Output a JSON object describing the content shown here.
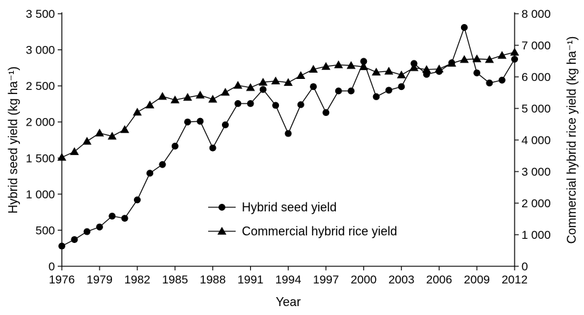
{
  "chart_data": {
    "type": "line",
    "title": "",
    "xlabel": "Year",
    "ylabel_left": "Hybrid seed yield (kg ha⁻¹)",
    "ylabel_right": "Commercial hybrid rice yield (kg ha⁻¹)",
    "xlim": [
      1976,
      2012
    ],
    "x_ticks": [
      1976,
      1979,
      1982,
      1985,
      1988,
      1991,
      1994,
      1997,
      2000,
      2003,
      2006,
      2009,
      2012
    ],
    "ylim_left": [
      0,
      3500
    ],
    "y_ticks_left": [
      0,
      500,
      1000,
      1500,
      2000,
      2500,
      3000,
      3500
    ],
    "y_tick_labels_left": [
      "0",
      "500",
      "1 000",
      "1 500",
      "2 000",
      "2 500",
      "3 000",
      "3 500"
    ],
    "ylim_right": [
      0,
      8000
    ],
    "y_ticks_right": [
      0,
      1000,
      2000,
      3000,
      4000,
      5000,
      6000,
      7000,
      8000
    ],
    "y_tick_labels_right": [
      "0",
      "1 000",
      "2 000",
      "3 000",
      "4 000",
      "5 000",
      "6 000",
      "7 000",
      "8 000"
    ],
    "legend_position": "center",
    "grid": false,
    "x": [
      1976,
      1977,
      1978,
      1979,
      1980,
      1981,
      1982,
      1983,
      1984,
      1985,
      1986,
      1987,
      1988,
      1989,
      1990,
      1991,
      1992,
      1993,
      1994,
      1995,
      1996,
      1997,
      1998,
      1999,
      2000,
      2001,
      2002,
      2003,
      2004,
      2005,
      2006,
      2007,
      2008,
      2009,
      2010,
      2011,
      2012
    ],
    "series": [
      {
        "name": "Hybrid seed yield",
        "axis": "left",
        "marker": "circle",
        "values": [
          280,
          370,
          480,
          545,
          695,
          665,
          920,
          1290,
          1410,
          1665,
          2000,
          2010,
          1640,
          1960,
          2255,
          2255,
          2450,
          2230,
          1840,
          2240,
          2490,
          2130,
          2430,
          2430,
          2840,
          2350,
          2440,
          2490,
          2810,
          2660,
          2700,
          2820,
          3310,
          2680,
          2540,
          2580,
          2870
        ]
      },
      {
        "name": "Commercial hybrid rice yield",
        "axis": "right",
        "marker": "triangle",
        "values": [
          3450,
          3630,
          3960,
          4220,
          4120,
          4330,
          4880,
          5110,
          5380,
          5270,
          5350,
          5420,
          5290,
          5510,
          5730,
          5660,
          5830,
          5870,
          5820,
          6040,
          6240,
          6330,
          6380,
          6360,
          6320,
          6150,
          6180,
          6060,
          6290,
          6230,
          6250,
          6430,
          6550,
          6570,
          6550,
          6680,
          6780
        ]
      }
    ]
  }
}
